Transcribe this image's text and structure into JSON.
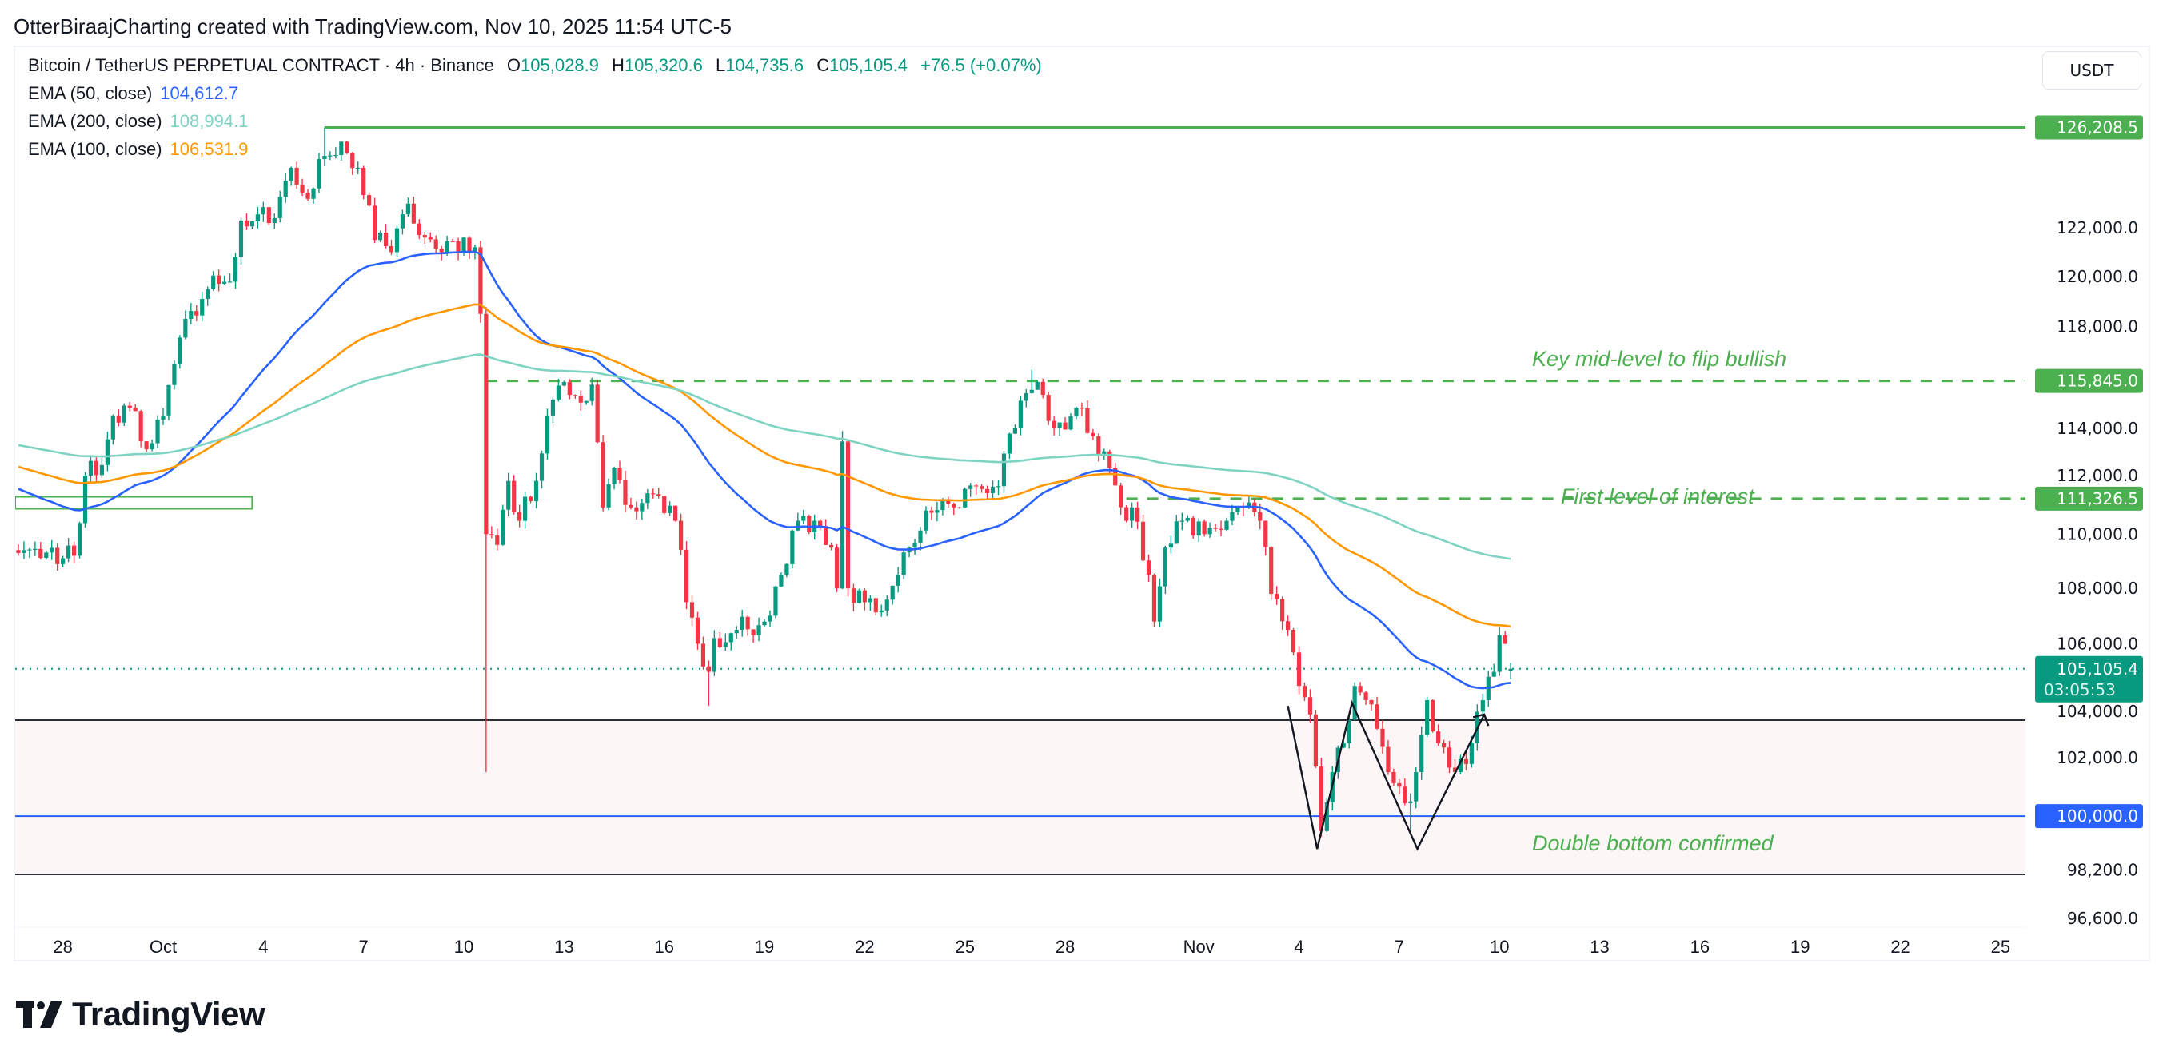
{
  "header": {
    "attribution": "OtterBiraajCharting created with TradingView.com, Nov 10, 2025 11:54 UTC-5"
  },
  "legend": {
    "symbol": "Bitcoin / TetherUS PERPETUAL CONTRACT · 4h · Binance",
    "open_label": "O",
    "open": "105,028.9",
    "high_label": "H",
    "high": "105,320.6",
    "low_label": "L",
    "low": "104,735.6",
    "close_label": "C",
    "close": "105,105.4",
    "change": "+76.5 (+0.07%)",
    "ema50": {
      "label": "EMA (50, close)",
      "value": "104,612.7",
      "color": "#2962ff"
    },
    "ema200": {
      "label": "EMA (200, close)",
      "value": "108,994.1",
      "color": "#7fd3c3"
    },
    "ema100": {
      "label": "EMA (100, close)",
      "value": "106,531.9",
      "color": "#ff9800"
    }
  },
  "currency_button": "USDT",
  "logo": {
    "text": "TradingView"
  },
  "annotations": {
    "key_mid": "Key mid-level to flip bullish",
    "first_level": "First level of interest",
    "double_bottom": "Double bottom confirmed"
  },
  "chart_data": {
    "type": "candlestick",
    "interval": "4h",
    "y_scale": "log",
    "ylim": [
      96200,
      128500
    ],
    "xlim": [
      "2025-09-26 12:00",
      "2025-11-27 00:00"
    ],
    "colors": {
      "up": "#089981",
      "down": "#f23645"
    },
    "last_candle": {
      "date": "2025-11-10 08:00",
      "open": 105028.9,
      "high": 105320.6,
      "low": 104735.6,
      "close": 105105.4
    },
    "close_path": [
      [
        "2025-09-26 16:00",
        109300
      ],
      [
        "2025-09-28 08:00",
        109200
      ],
      [
        "2025-09-28 16:00",
        112200
      ],
      [
        "2025-09-29 04:00",
        112600
      ],
      [
        "2025-09-29 12:00",
        114500
      ],
      [
        "2025-09-30 00:00",
        114800
      ],
      [
        "2025-09-30 12:00",
        113200
      ],
      [
        "2025-10-01 00:00",
        114500
      ],
      [
        "2025-10-01 08:00",
        116500
      ],
      [
        "2025-10-01 16:00",
        118300
      ],
      [
        "2025-10-02 08:00",
        119500
      ],
      [
        "2025-10-03 00:00",
        119800
      ],
      [
        "2025-10-03 08:00",
        122300
      ],
      [
        "2025-10-04 08:00",
        122400
      ],
      [
        "2025-10-04 20:00",
        124500
      ],
      [
        "2025-10-05 08:00",
        123200
      ],
      [
        "2025-10-05 20:00",
        125000
      ],
      [
        "2025-10-06 08:00",
        125600
      ],
      [
        "2025-10-06 20:00",
        124500
      ],
      [
        "2025-10-07 08:00",
        121500
      ],
      [
        "2025-10-07 20:00",
        121000
      ],
      [
        "2025-10-08 08:00",
        123000
      ],
      [
        "2025-10-08 20:00",
        121600
      ],
      [
        "2025-10-09 08:00",
        121000
      ],
      [
        "2025-10-10 08:00",
        121200
      ],
      [
        "2025-10-10 12:00",
        118500
      ],
      [
        "2025-10-10 16:00",
        110000
      ],
      [
        "2025-10-11 00:00",
        109600
      ],
      [
        "2025-10-11 08:00",
        112000
      ],
      [
        "2025-10-11 16:00",
        110500
      ],
      [
        "2025-10-12 04:00",
        112000
      ],
      [
        "2025-10-12 12:00",
        114500
      ],
      [
        "2025-10-13 00:00",
        115800
      ],
      [
        "2025-10-13 12:00",
        115000
      ],
      [
        "2025-10-13 20:00",
        115700
      ],
      [
        "2025-10-14 04:00",
        111000
      ],
      [
        "2025-10-14 12:00",
        112500
      ],
      [
        "2025-10-15 00:00",
        111000
      ],
      [
        "2025-10-15 16:00",
        111500
      ],
      [
        "2025-10-16 08:00",
        110500
      ],
      [
        "2025-10-16 16:00",
        107500
      ],
      [
        "2025-10-17 00:00",
        106000
      ],
      [
        "2025-10-17 08:00",
        105000
      ],
      [
        "2025-10-17 12:00",
        106200
      ],
      [
        "2025-10-18 04:00",
        106500
      ],
      [
        "2025-10-19 00:00",
        106800
      ],
      [
        "2025-10-19 12:00",
        108500
      ],
      [
        "2025-10-20 00:00",
        110500
      ],
      [
        "2025-10-20 12:00",
        110500
      ],
      [
        "2025-10-21 00:00",
        109500
      ],
      [
        "2025-10-21 04:00",
        108000
      ],
      [
        "2025-10-21 08:00",
        113500
      ],
      [
        "2025-10-21 12:00",
        108000
      ],
      [
        "2025-10-22 00:00",
        107500
      ],
      [
        "2025-10-22 12:00",
        107200
      ],
      [
        "2025-10-23 00:00",
        108500
      ],
      [
        "2025-10-23 08:00",
        109500
      ],
      [
        "2025-10-24 00:00",
        110800
      ],
      [
        "2025-10-24 16:00",
        111000
      ],
      [
        "2025-10-25 08:00",
        111800
      ],
      [
        "2025-10-26 00:00",
        111800
      ],
      [
        "2025-10-26 08:00",
        113800
      ],
      [
        "2025-10-27 00:00",
        115500
      ],
      [
        "2025-10-27 08:00",
        115300
      ],
      [
        "2025-10-27 16:00",
        114000
      ],
      [
        "2025-10-28 08:00",
        114800
      ],
      [
        "2025-10-29 00:00",
        113000
      ],
      [
        "2025-10-29 08:00",
        112500
      ],
      [
        "2025-10-29 20:00",
        110500
      ],
      [
        "2025-10-30 00:00",
        111000
      ],
      [
        "2025-10-30 12:00",
        108500
      ],
      [
        "2025-10-30 16:00",
        106800
      ],
      [
        "2025-10-31 00:00",
        109500
      ],
      [
        "2025-10-31 12:00",
        110500
      ],
      [
        "2025-11-01 04:00",
        110000
      ],
      [
        "2025-11-01 20:00",
        110500
      ],
      [
        "2025-11-02 08:00",
        111000
      ],
      [
        "2025-11-02 20:00",
        110500
      ],
      [
        "2025-11-03 04:00",
        107800
      ],
      [
        "2025-11-03 16:00",
        106500
      ],
      [
        "2025-11-04 00:00",
        104500
      ],
      [
        "2025-11-04 08:00",
        103500
      ],
      [
        "2025-11-04 16:00",
        99500
      ],
      [
        "2025-11-05 00:00",
        101500
      ],
      [
        "2025-11-05 08:00",
        102500
      ],
      [
        "2025-11-05 16:00",
        104500
      ],
      [
        "2025-11-06 00:00",
        104000
      ],
      [
        "2025-11-06 08:00",
        103000
      ],
      [
        "2025-11-06 16:00",
        101500
      ],
      [
        "2025-11-07 00:00",
        101000
      ],
      [
        "2025-11-07 08:00",
        100500
      ],
      [
        "2025-11-07 12:00",
        101500
      ],
      [
        "2025-11-07 20:00",
        104000
      ],
      [
        "2025-11-08 04:00",
        102500
      ],
      [
        "2025-11-08 16:00",
        101500
      ],
      [
        "2025-11-09 04:00",
        102500
      ],
      [
        "2025-11-09 12:00",
        104000
      ],
      [
        "2025-11-09 20:00",
        105000
      ],
      [
        "2025-11-10 00:00",
        106300
      ],
      [
        "2025-11-10 04:00",
        106000
      ],
      [
        "2025-11-10 08:00",
        105105.4
      ]
    ],
    "notable_wicks": [
      {
        "date": "2025-10-05 20:00",
        "high": 126208.5
      },
      {
        "date": "2025-10-10 16:00",
        "low": 101500
      },
      {
        "date": "2025-10-17 08:00",
        "low": 103800
      },
      {
        "date": "2025-10-21 08:00",
        "high": 113900
      },
      {
        "date": "2025-10-27 00:00",
        "high": 116300
      },
      {
        "date": "2025-11-04 16:00",
        "low": 99300
      },
      {
        "date": "2025-11-07 08:00",
        "low": 99500
      },
      {
        "date": "2025-11-10 00:00",
        "high": 106600
      }
    ],
    "emas": [
      {
        "name": "EMA (50, close)",
        "period": 50,
        "color": "#2962ff",
        "start_value": 111800
      },
      {
        "name": "EMA (100, close)",
        "period": 100,
        "color": "#ff9800",
        "start_value": 112600
      },
      {
        "name": "EMA (200, close)",
        "period": 200,
        "color": "#7fd3c3",
        "start_value": 113400
      }
    ],
    "x_ticks": [
      {
        "label": "28",
        "date": "2025-09-28 00:00"
      },
      {
        "label": "Oct",
        "date": "2025-10-01 00:00"
      },
      {
        "label": "4",
        "date": "2025-10-04 00:00"
      },
      {
        "label": "7",
        "date": "2025-10-07 00:00"
      },
      {
        "label": "10",
        "date": "2025-10-10 00:00"
      },
      {
        "label": "13",
        "date": "2025-10-13 00:00"
      },
      {
        "label": "16",
        "date": "2025-10-16 00:00"
      },
      {
        "label": "19",
        "date": "2025-10-19 00:00"
      },
      {
        "label": "22",
        "date": "2025-10-22 00:00"
      },
      {
        "label": "25",
        "date": "2025-10-25 00:00"
      },
      {
        "label": "28",
        "date": "2025-10-28 00:00"
      },
      {
        "label": "Nov",
        "date": "2025-11-01 00:00"
      },
      {
        "label": "4",
        "date": "2025-11-04 00:00"
      },
      {
        "label": "7",
        "date": "2025-11-07 00:00"
      },
      {
        "label": "10",
        "date": "2025-11-10 00:00"
      },
      {
        "label": "13",
        "date": "2025-11-13 00:00"
      },
      {
        "label": "16",
        "date": "2025-11-16 00:00"
      },
      {
        "label": "19",
        "date": "2025-11-19 00:00"
      },
      {
        "label": "22",
        "date": "2025-11-22 00:00"
      },
      {
        "label": "25",
        "date": "2025-11-25 00:00"
      }
    ],
    "y_ticks": [
      {
        "label": "122,000.0",
        "value": 122000
      },
      {
        "label": "120,000.0",
        "value": 120000
      },
      {
        "label": "118,000.0",
        "value": 118000
      },
      {
        "label": "114,000.0",
        "value": 114000
      },
      {
        "label": "112,000.0",
        "value": 112000
      },
      {
        "label": "110,000.0",
        "value": 110000
      },
      {
        "label": "108,000.0",
        "value": 108000
      },
      {
        "label": "106,000.0",
        "value": 106000
      },
      {
        "label": "104,000.0",
        "value": 104000
      },
      {
        "label": "102,000.0",
        "value": 102000
      },
      {
        "label": "98,200.0",
        "value": 98200
      },
      {
        "label": "96,600.0",
        "value": 96600
      }
    ],
    "price_badges": [
      {
        "label": "126,208.5",
        "value": 126208.5,
        "color": "#4caf50"
      },
      {
        "label": "115,845.0",
        "value": 115845,
        "color": "#4caf50"
      },
      {
        "label": "111,326.5",
        "value": 111326.5,
        "color": "#4caf50"
      },
      {
        "label": "100,000.0",
        "value": 100000,
        "color": "#2962ff"
      }
    ],
    "current_price": {
      "label": "105,105.4",
      "countdown": "03:05:53",
      "value": 105105.4,
      "color": "#089981"
    },
    "drawings": {
      "ath_line": {
        "price": 126208.5,
        "from": "2025-10-05 20:00",
        "color": "#4caf50",
        "style": "solid"
      },
      "key_mid_line": {
        "price": 115845,
        "from": "2025-10-10 16:00",
        "color": "#4caf50",
        "style": "dashed"
      },
      "first_level_line": {
        "price": 111326.5,
        "from": "2025-10-29 20:00",
        "color": "#4caf50",
        "style": "dashed"
      },
      "support_box": {
        "top": 111400,
        "bottom": 110950,
        "to": "2025-10-03 16:00",
        "color": "#4caf50"
      },
      "demand_zone": {
        "top": 103300,
        "bottom": 98050,
        "fill": "#fdf6f6",
        "border": "#2a2e39"
      },
      "round_level": {
        "price": 100000,
        "color": "#2962ff"
      },
      "double_bottom_path": [
        [
          "2025-11-03 16:00",
          103800
        ],
        [
          "2025-11-04 13:00",
          98900
        ],
        [
          "2025-11-05 14:00",
          103900
        ],
        [
          "2025-11-07 13:00",
          98900
        ],
        [
          "2025-11-09 13:00",
          103500
        ]
      ],
      "arrow_head": [
        [
          "2025-11-09 05:00",
          103400
        ],
        [
          "2025-11-09 13:00",
          103500
        ],
        [
          "2025-11-09 16:00",
          103100
        ]
      ]
    }
  }
}
